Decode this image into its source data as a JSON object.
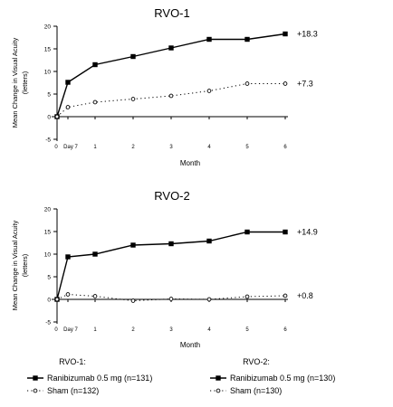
{
  "chart_data": [
    {
      "type": "line",
      "title": "RVO-1",
      "ylabel": "Mean Change in Visual Acuity (letters)",
      "xlabel": "Month",
      "ylim": [
        -5,
        20
      ],
      "yticks": [
        -5,
        0,
        5,
        10,
        15,
        20
      ],
      "x": [
        0,
        0.25,
        1,
        2,
        3,
        4,
        5,
        6
      ],
      "xtick_labels": [
        "0",
        "Day 7",
        "1",
        "2",
        "3",
        "4",
        "5",
        "6"
      ],
      "series": [
        {
          "name": "Ranibizumab 0.5 mg (n=131)",
          "values": [
            0,
            7.6,
            11.5,
            13.3,
            15.2,
            17.1,
            17.1,
            18.3
          ],
          "end_label": "+18.3"
        },
        {
          "name": "Sham (n=132)",
          "values": [
            0,
            2.1,
            3.2,
            3.9,
            4.6,
            5.7,
            7.3,
            7.3
          ],
          "end_label": "+7.3"
        }
      ]
    },
    {
      "type": "line",
      "title": "RVO-2",
      "ylabel": "Mean Change in Visual Acuity (letters)",
      "xlabel": "Month",
      "ylim": [
        -5,
        20
      ],
      "yticks": [
        -5,
        0,
        5,
        10,
        15,
        20
      ],
      "x": [
        0,
        0.25,
        1,
        2,
        3,
        4,
        5,
        6
      ],
      "xtick_labels": [
        "0",
        "Day 7",
        "1",
        "2",
        "3",
        "4",
        "5",
        "6"
      ],
      "series": [
        {
          "name": "Ranibizumab 0.5 mg (n=130)",
          "values": [
            0,
            9.4,
            10.0,
            12.0,
            12.3,
            12.9,
            14.9,
            14.9
          ],
          "end_label": "+14.9"
        },
        {
          "name": "Sham (n=130)",
          "values": [
            0,
            1.1,
            0.7,
            -0.3,
            0.1,
            0.0,
            0.6,
            0.8
          ],
          "end_label": "+0.8"
        }
      ]
    }
  ],
  "legend": {
    "groups": [
      {
        "title": "RVO-1:",
        "entries": [
          "Ranibizumab 0.5 mg (n=131)",
          "Sham (n=132)"
        ]
      },
      {
        "title": "RVO-2:",
        "entries": [
          "Ranibizumab 0.5 mg (n=130)",
          "Sham (n=130)"
        ]
      }
    ]
  }
}
